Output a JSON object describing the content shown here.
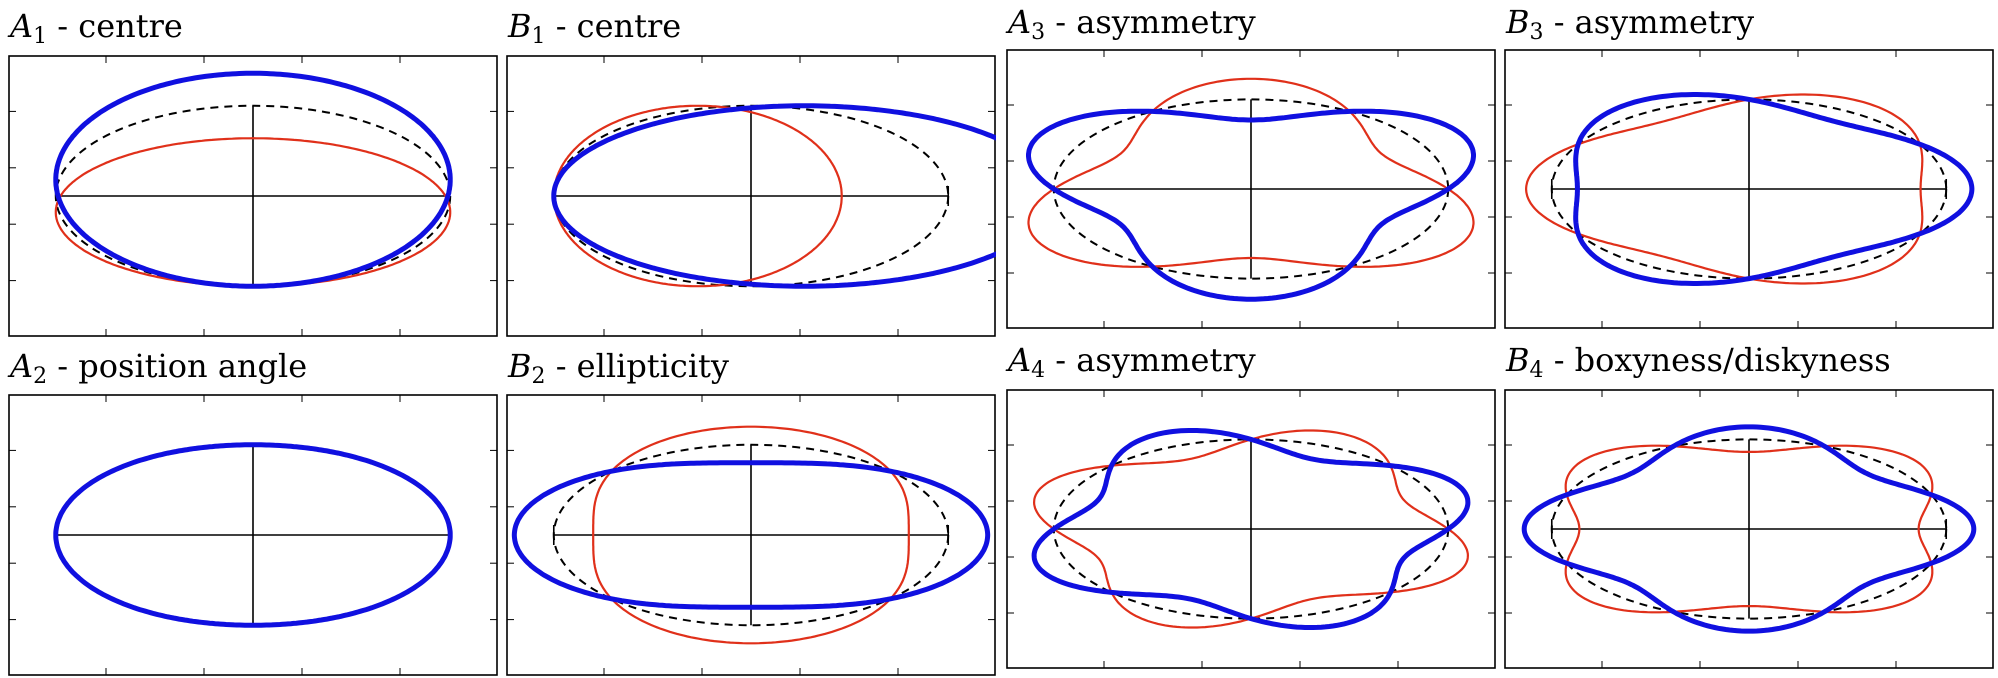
{
  "panels": [
    {
      "id": "A1",
      "symbol": "A",
      "index": "1",
      "label": " - centre",
      "mode": "a1",
      "dashedCaps": false
    },
    {
      "id": "B1",
      "symbol": "B",
      "index": "1",
      "label": " - centre",
      "mode": "b1",
      "dashedCaps": true
    },
    {
      "id": "A3",
      "symbol": "A",
      "index": "3",
      "label": " - asymmetry",
      "mode": "a3",
      "dashedCaps": false
    },
    {
      "id": "B3",
      "symbol": "B",
      "index": "3",
      "label": " - asymmetry",
      "mode": "b3",
      "dashedCaps": true
    },
    {
      "id": "A2",
      "symbol": "A",
      "index": "2",
      "label": " - position angle",
      "mode": "a2",
      "dashedCaps": false
    },
    {
      "id": "B2",
      "symbol": "B",
      "index": "2",
      "label": " - ellipticity",
      "mode": "b2",
      "dashedCaps": true
    },
    {
      "id": "A4",
      "symbol": "A",
      "index": "4",
      "label": " - asymmetry",
      "mode": "a4",
      "dashedCaps": false
    },
    {
      "id": "B4",
      "symbol": "B",
      "index": "4",
      "label": " - boxyness/diskyness",
      "mode": "b4",
      "dashedCaps": true
    }
  ],
  "colors": {
    "positive": "#1010e0",
    "negative": "#e0301a",
    "reference": "#000000"
  }
}
